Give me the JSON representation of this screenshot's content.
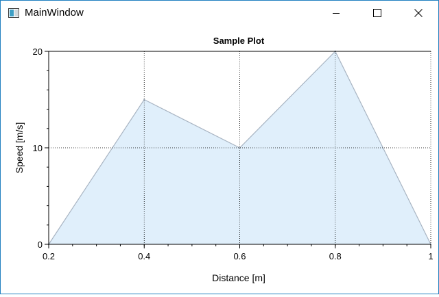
{
  "window": {
    "title": "MainWindow",
    "icon": "app-window-icon",
    "controls": [
      "minimize-icon",
      "maximize-icon",
      "close-icon"
    ]
  },
  "chart_data": {
    "type": "area",
    "title": "Sample Plot",
    "xlabel": "Distance [m]",
    "ylabel": "Speed [m/s]",
    "x": [
      0.2,
      0.4,
      0.6,
      0.8,
      1.0
    ],
    "series": [
      {
        "values": [
          0,
          15,
          10,
          20,
          0
        ]
      }
    ],
    "xlim": [
      0.2,
      1.0
    ],
    "ylim": [
      0,
      20
    ],
    "x_ticks": [
      {
        "value": 0.2,
        "label": "0.2"
      },
      {
        "value": 0.4,
        "label": "0.4"
      },
      {
        "value": 0.6,
        "label": "0.6"
      },
      {
        "value": 0.8,
        "label": "0.8"
      },
      {
        "value": 1.0,
        "label": "1"
      }
    ],
    "y_ticks": [
      {
        "value": 0,
        "label": "0"
      },
      {
        "value": 10,
        "label": "10"
      },
      {
        "value": 20,
        "label": "20"
      }
    ],
    "x_minor_step": 0.05,
    "y_minor_step": 2,
    "grid": "major dotted",
    "colors": {
      "fill": "#e0effb",
      "line": "#a8b4c2",
      "grid": "#000000"
    }
  }
}
